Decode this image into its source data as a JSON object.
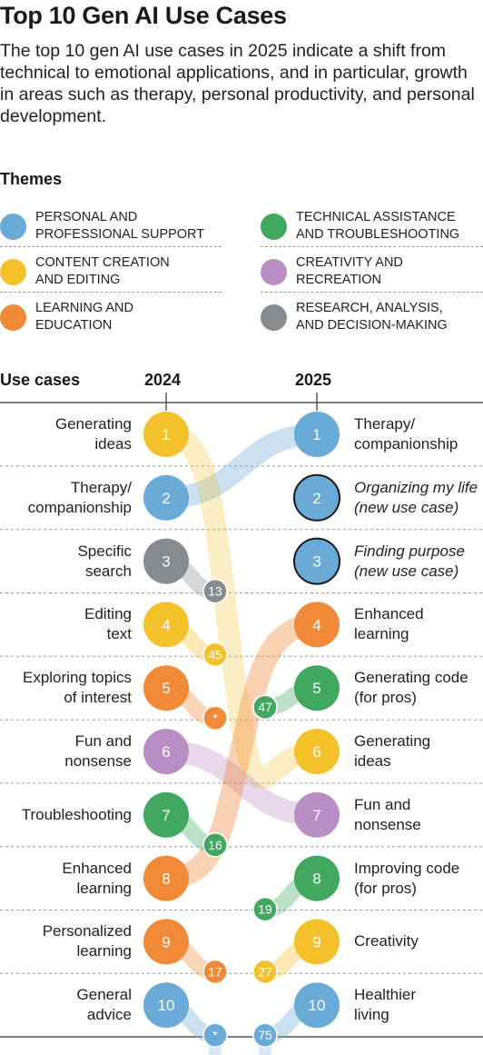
{
  "title": "Top 10 Gen AI Use Cases",
  "subtitle": "The top 10 gen AI use cases in 2025 indicate a shift from technical to emotional applications, and in particular, growth in areas such as therapy, personal productivity, and personal development.",
  "themes_heading": "Themes",
  "colors": {
    "personal": "#6aaad6",
    "technical": "#41a85f",
    "content": "#f5c12b",
    "creativity": "#b98ec4",
    "learning": "#f08a37",
    "research": "#878b8f"
  },
  "themes": [
    {
      "key": "personal",
      "label": "Personal and\nprofessional support"
    },
    {
      "key": "technical",
      "label": "Technical assistance\nand troubleshooting"
    },
    {
      "key": "content",
      "label": "Content creation\nand editing"
    },
    {
      "key": "creativity",
      "label": "Creativity and\nrecreation"
    },
    {
      "key": "learning",
      "label": "Learning and\neducation"
    },
    {
      "key": "research",
      "label": "Research, analysis,\nand decision-making"
    }
  ],
  "headers": {
    "use_cases": "Use cases",
    "year_2024": "2024",
    "year_2025": "2025"
  },
  "rank_2024": [
    {
      "rank": "1",
      "label": "Generating\nideas",
      "theme": "content",
      "to": "6"
    },
    {
      "rank": "2",
      "label": "Therapy/\ncompanionship",
      "theme": "personal",
      "to": "1"
    },
    {
      "rank": "3",
      "label": "Specific\nsearch",
      "theme": "research",
      "to": "13"
    },
    {
      "rank": "4",
      "label": "Editing\ntext",
      "theme": "content",
      "to": "45"
    },
    {
      "rank": "5",
      "label": "Exploring topics\nof interest",
      "theme": "learning",
      "to": "*"
    },
    {
      "rank": "6",
      "label": "Fun and\nnonsense",
      "theme": "creativity",
      "to": "7"
    },
    {
      "rank": "7",
      "label": "Troubleshooting",
      "theme": "technical",
      "to": "16"
    },
    {
      "rank": "8",
      "label": "Enhanced\nlearning",
      "theme": "learning",
      "to": "4"
    },
    {
      "rank": "9",
      "label": "Personalized\nlearning",
      "theme": "learning",
      "to": "17"
    },
    {
      "rank": "10",
      "label": "General\nadvice",
      "theme": "personal",
      "to": "*"
    }
  ],
  "rank_2025": [
    {
      "rank": "1",
      "label": "Therapy/\ncompanionship",
      "theme": "personal",
      "from": "2"
    },
    {
      "rank": "2",
      "label": "Organizing my life\n(new use case)",
      "theme": "personal",
      "from": "new"
    },
    {
      "rank": "3",
      "label": "Finding purpose\n(new use case)",
      "theme": "personal",
      "from": "new"
    },
    {
      "rank": "4",
      "label": "Enhanced\nlearning",
      "theme": "learning",
      "from": "8"
    },
    {
      "rank": "5",
      "label": "Generating code\n(for pros)",
      "theme": "technical",
      "from": "47"
    },
    {
      "rank": "6",
      "label": "Generating\nideas",
      "theme": "content",
      "from": "1"
    },
    {
      "rank": "7",
      "label": "Fun and\nnonsense",
      "theme": "creativity",
      "from": "6"
    },
    {
      "rank": "8",
      "label": "Improving code\n(for pros)",
      "theme": "technical",
      "from": "19"
    },
    {
      "rank": "9",
      "label": "Creativity",
      "theme": "content",
      "from": "27"
    },
    {
      "rank": "10",
      "label": "Healthier\nliving",
      "theme": "personal",
      "from": "75"
    }
  ]
}
